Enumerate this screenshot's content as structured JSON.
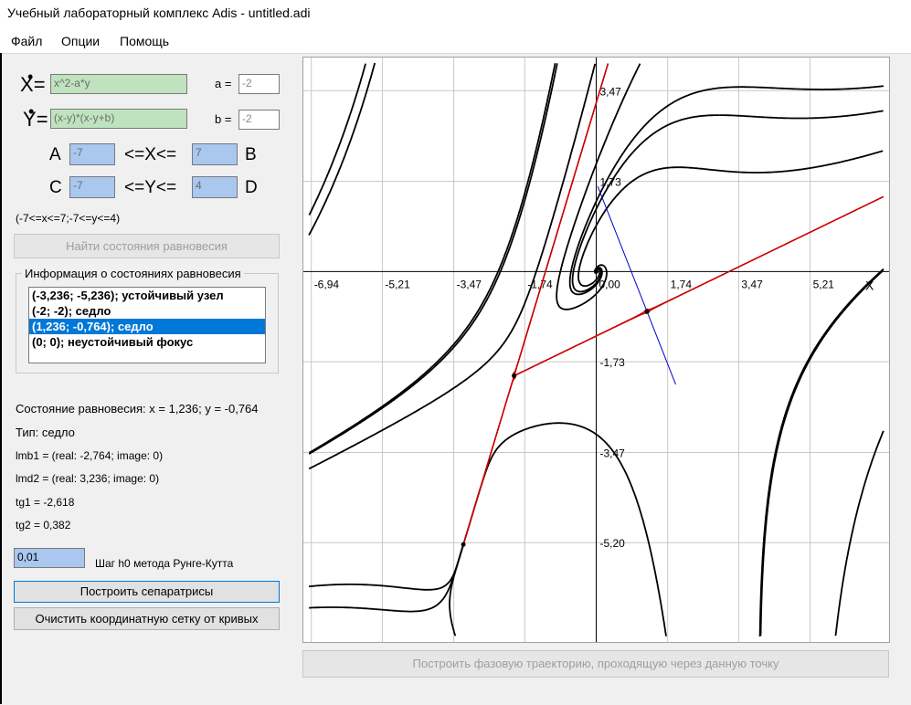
{
  "window": {
    "title": "Учебный лабораторный комплекс Adis - untitled.adi"
  },
  "menu": [
    {
      "label": "Файл"
    },
    {
      "label": "Опции"
    },
    {
      "label": "Помощь"
    }
  ],
  "equations": {
    "x_label": "X",
    "y_label": "Y",
    "eq_sign": "=",
    "x_expr": "x^2-a*y",
    "y_expr": "(x-y)*(x-y+b)",
    "a_label": "a =",
    "a_value": "-2",
    "b_label": "b =",
    "b_value": "-2"
  },
  "bounds": {
    "A_label": "A",
    "A_value": "-7",
    "x_rel": "<=X<=",
    "B_value": "7",
    "B_label": "B",
    "C_label": "C",
    "C_value": "-7",
    "y_rel": "<=Y<=",
    "D_value": "4",
    "D_label": "D",
    "summary": "(-7<=x<=7;-7<=y<=4)"
  },
  "find_equilibria_button": "Найти состояния равновесия",
  "equilibria_group": {
    "title": "Информация о состояниях равновесия",
    "items": [
      {
        "label": "(-3,236; -5,236); устойчивый узел"
      },
      {
        "label": "(-2; -2); седло"
      },
      {
        "label": "(1,236; -0,764); седло"
      },
      {
        "label": "(0; 0); неустойчивый фокус"
      }
    ],
    "selected_index": 2
  },
  "details": {
    "state": "Состояние равновесия: x = 1,236; y = -0,764",
    "type": "Тип: седло",
    "lmb1": "lmb1 = (real: -2,764; image: 0)",
    "lmd2": "lmd2 = (real: 3,236; image: 0)",
    "tg1": "tg1 = -2,618",
    "tg2": "tg2 = 0,382"
  },
  "step": {
    "value": "0,01",
    "label": "Шаг h0 метода Рунге-Кутта"
  },
  "separatrix_button": "Построить сепаратрисы",
  "clear_button": "Очистить координатную сетку от кривых",
  "trajectory_button": "Построить фазовую траекторию, проходящую через данную точку",
  "chart_data": {
    "type": "line",
    "x_ticks": [
      "-6,94",
      "-5,21",
      "-3,47",
      "-1,74",
      "0,00",
      "1,74",
      "3,47",
      "5,21"
    ],
    "y_ticks": [
      "3,47",
      "1,73",
      "-1,73",
      "-3,47",
      "-5,20"
    ],
    "x_axis_label": "X",
    "xlim": [
      -7,
      7
    ],
    "ylim": [
      -7,
      4
    ],
    "grid": true,
    "equilibria": [
      [
        -3.236,
        -5.236
      ],
      [
        -2,
        -2
      ],
      [
        1.236,
        -0.764
      ],
      [
        0,
        0
      ]
    ],
    "colors": {
      "trajectory": "#000000",
      "separatrix": "#cc0000",
      "eigen": "#0000cc",
      "grid": "#c8c8c8"
    }
  }
}
